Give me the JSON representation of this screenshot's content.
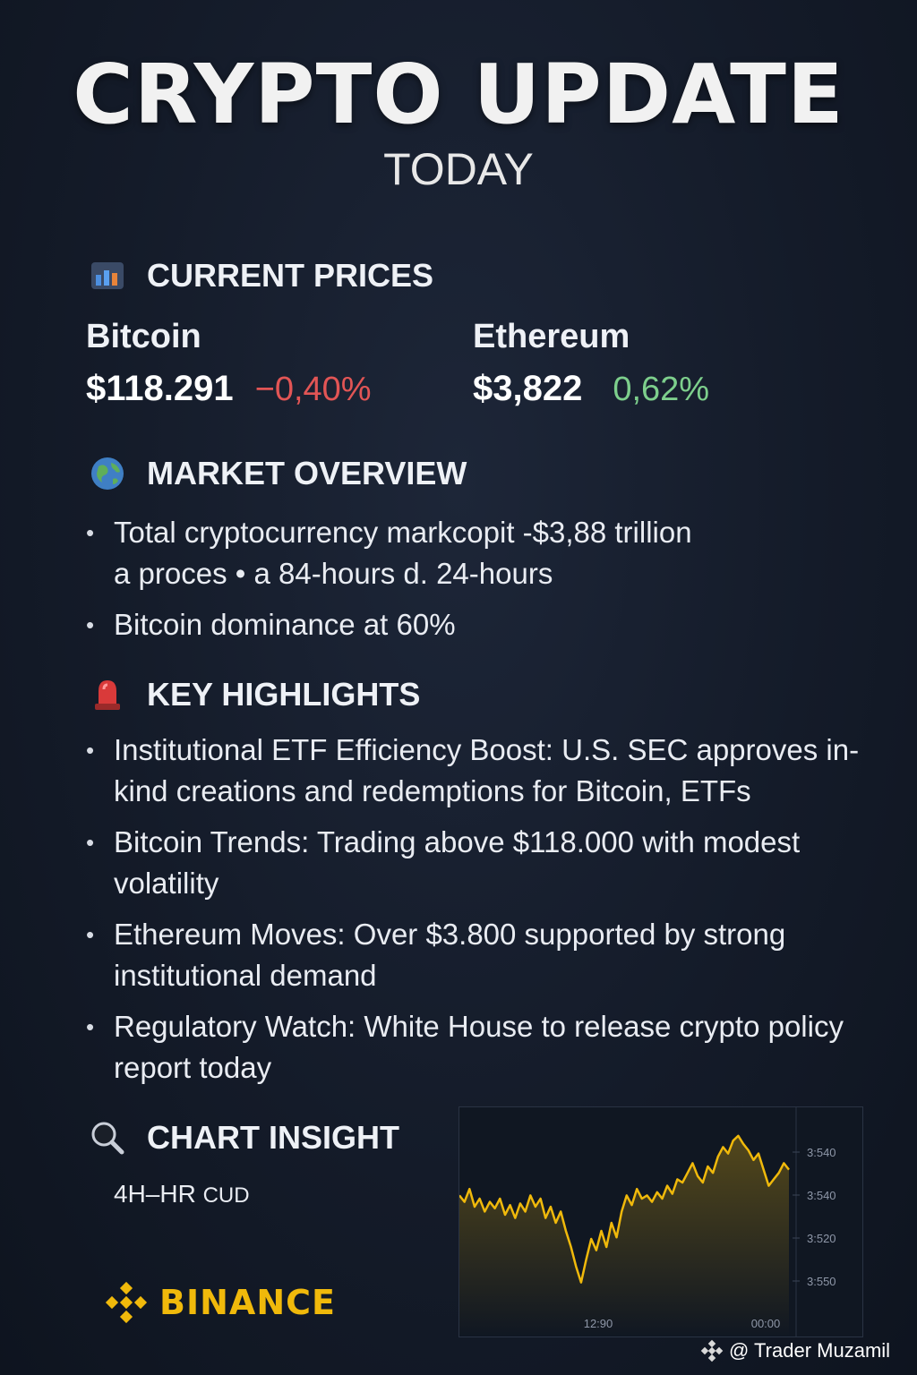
{
  "header": {
    "title": "CRYPTO UPDATE",
    "subtitle": "TODAY"
  },
  "prices": {
    "heading": "CURRENT PRICES",
    "icon": "bar-chart-icon",
    "bitcoin": {
      "name": "Bitcoin",
      "price": "$118.291",
      "change": "−0,40%"
    },
    "ethereum": {
      "name": "Ethereum",
      "price": "$3,822",
      "change": "0,62%"
    }
  },
  "market": {
    "heading": "MARKET OVERVIEW",
    "icon": "globe-icon",
    "items": [
      {
        "line1": "Total cryptocurrency markcopit -$3,88 trillion",
        "line2": "a proces • a 84-hours d. 24-hours"
      },
      {
        "line1": "Bitcoin dominance at 60%"
      }
    ]
  },
  "highlights": {
    "heading": "KEY HIGHLIGHTS",
    "icon": "siren-icon",
    "items": [
      "Institutional ETF Efficiency Boost: U.S. SEC approves in-kind creations and redemptions for Bitcoin, ETFs",
      "Bitcoin Trends: Trading above $118.000 with modest volatility",
      "Ethereum Moves: Over $3.800 supported by strong institutional demand",
      "Regulatory Watch: White House to release crypto policy report today"
    ]
  },
  "insight": {
    "heading": "CHART INSIGHT",
    "icon": "magnifier-icon",
    "subtitle": "4H–HR",
    "subtitle_small": "CUD"
  },
  "brand": {
    "name": "BINANCE",
    "color": "#f0b90b"
  },
  "credit": {
    "text": "@ Trader Muzamil"
  },
  "chart_data": {
    "type": "line",
    "title": "",
    "x_tick_labels": [
      "12:90",
      "00:00"
    ],
    "y_tick_labels": [
      "3:540",
      "3:540",
      "3:520",
      "3:550"
    ],
    "line_color": "#f0b90b",
    "grid": false,
    "values": [
      0.62,
      0.58,
      0.66,
      0.55,
      0.6,
      0.52,
      0.58,
      0.54,
      0.6,
      0.5,
      0.56,
      0.48,
      0.57,
      0.52,
      0.62,
      0.55,
      0.6,
      0.48,
      0.55,
      0.45,
      0.52,
      0.4,
      0.3,
      0.18,
      0.08,
      0.22,
      0.35,
      0.28,
      0.4,
      0.3,
      0.45,
      0.36,
      0.52,
      0.62,
      0.56,
      0.66,
      0.6,
      0.62,
      0.58,
      0.64,
      0.6,
      0.68,
      0.63,
      0.72,
      0.7,
      0.76,
      0.82,
      0.74,
      0.7,
      0.8,
      0.76,
      0.86,
      0.92,
      0.88,
      0.96,
      0.99,
      0.94,
      0.9,
      0.84,
      0.88,
      0.78,
      0.68,
      0.72,
      0.76,
      0.82,
      0.78
    ]
  }
}
